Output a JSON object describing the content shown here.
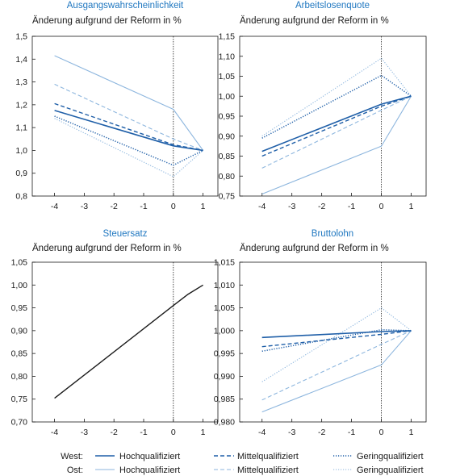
{
  "colors": {
    "west": "#1f5fa8",
    "ost": "#8db6de",
    "black": "#1a1a1a",
    "title": "#1f77c0"
  },
  "legend": {
    "west_label": "West:",
    "ost_label": "Ost:",
    "entries": [
      "Hochqualifiziert",
      "Mittelqualifiziert",
      "Geringqualifiziert"
    ]
  },
  "chart_data": [
    {
      "type": "line",
      "title": "Ausgangswahrscheinlichkeit",
      "subtitle": "Änderung aufgrund der Reform in %",
      "x": [
        -4,
        0,
        1
      ],
      "xticks": [
        "-4",
        "-3",
        "-2",
        "-1",
        "0",
        "1"
      ],
      "ylim": [
        0.8,
        1.5
      ],
      "yticks": [
        "0,8",
        "0,9",
        "1,0",
        "1,1",
        "1,2",
        "1,3",
        "1,4",
        "1,5"
      ],
      "series": [
        {
          "name": "Hochqualifiziert",
          "region": "West",
          "values": [
            1.175,
            1.02,
            1.0
          ]
        },
        {
          "name": "Mittelqualifiziert",
          "region": "West",
          "values": [
            1.205,
            1.025,
            1.0
          ]
        },
        {
          "name": "Geringqualifiziert",
          "region": "West",
          "values": [
            1.15,
            0.935,
            1.0
          ]
        },
        {
          "name": "Hochqualifiziert",
          "region": "Ost",
          "values": [
            1.415,
            1.18,
            1.0
          ]
        },
        {
          "name": "Mittelqualifiziert",
          "region": "Ost",
          "values": [
            1.29,
            1.05,
            1.0
          ]
        },
        {
          "name": "Geringqualifiziert",
          "region": "Ost",
          "values": [
            1.14,
            0.885,
            1.0
          ]
        }
      ]
    },
    {
      "type": "line",
      "title": "Arbeitslosenquote",
      "subtitle": "Änderung aufgrund der Reform in %",
      "x": [
        -4,
        0,
        1
      ],
      "xticks": [
        "-4",
        "-3",
        "-2",
        "-1",
        "0",
        "1"
      ],
      "ylim": [
        0.75,
        1.15
      ],
      "yticks": [
        "0,75",
        "0,80",
        "0,85",
        "0,90",
        "0,95",
        "1,00",
        "1,05",
        "1,10",
        "1,15"
      ],
      "series": [
        {
          "name": "Hochqualifiziert",
          "region": "West",
          "values": [
            0.862,
            0.98,
            1.0
          ]
        },
        {
          "name": "Mittelqualifiziert",
          "region": "West",
          "values": [
            0.85,
            0.975,
            1.0
          ]
        },
        {
          "name": "Geringqualifiziert",
          "region": "West",
          "values": [
            0.895,
            1.052,
            1.0
          ]
        },
        {
          "name": "Hochqualifiziert",
          "region": "Ost",
          "values": [
            0.755,
            0.875,
            1.0
          ]
        },
        {
          "name": "Mittelqualifiziert",
          "region": "Ost",
          "values": [
            0.82,
            0.965,
            1.0
          ]
        },
        {
          "name": "Geringqualifiziert",
          "region": "Ost",
          "values": [
            0.9,
            1.095,
            1.0
          ]
        }
      ]
    },
    {
      "type": "line",
      "title": "Steuersatz",
      "subtitle": "Änderung aufgrund der Reform in %",
      "x": [
        -4,
        0,
        0.5,
        1
      ],
      "xticks": [
        "-4",
        "-3",
        "-2",
        "-1",
        "0",
        "1"
      ],
      "ylim": [
        0.7,
        1.05
      ],
      "yticks": [
        "0,70",
        "0,75",
        "0,80",
        "0,85",
        "0,90",
        "0,95",
        "1,00",
        "1,05"
      ],
      "series": [
        {
          "name": "",
          "region": "",
          "values": [
            0.752,
            0.955,
            0.98,
            1.0
          ]
        }
      ]
    },
    {
      "type": "line",
      "title": "Bruttolohn",
      "subtitle": "Änderung aufgrund der Reform in %",
      "x": [
        -4,
        0,
        1
      ],
      "xticks": [
        "-4",
        "-3",
        "-2",
        "-1",
        "0",
        "1"
      ],
      "ylim": [
        0.98,
        1.015
      ],
      "yticks": [
        "0,980",
        "0,985",
        "0,990",
        "0,995",
        "1,000",
        "1,005",
        "1,010",
        "1,015"
      ],
      "series": [
        {
          "name": "Hochqualifiziert",
          "region": "West",
          "values": [
            0.9985,
            0.9998,
            1.0
          ]
        },
        {
          "name": "Mittelqualifiziert",
          "region": "West",
          "values": [
            0.9965,
            0.9992,
            1.0
          ]
        },
        {
          "name": "Geringqualifiziert",
          "region": "West",
          "values": [
            0.9955,
            1.0002,
            1.0
          ]
        },
        {
          "name": "Hochqualifiziert",
          "region": "Ost",
          "values": [
            0.9822,
            0.9925,
            1.0
          ]
        },
        {
          "name": "Mittelqualifiziert",
          "region": "Ost",
          "values": [
            0.9848,
            0.997,
            1.0
          ]
        },
        {
          "name": "Geringqualifiziert",
          "region": "Ost",
          "values": [
            0.9888,
            1.005,
            1.0
          ]
        }
      ]
    }
  ]
}
